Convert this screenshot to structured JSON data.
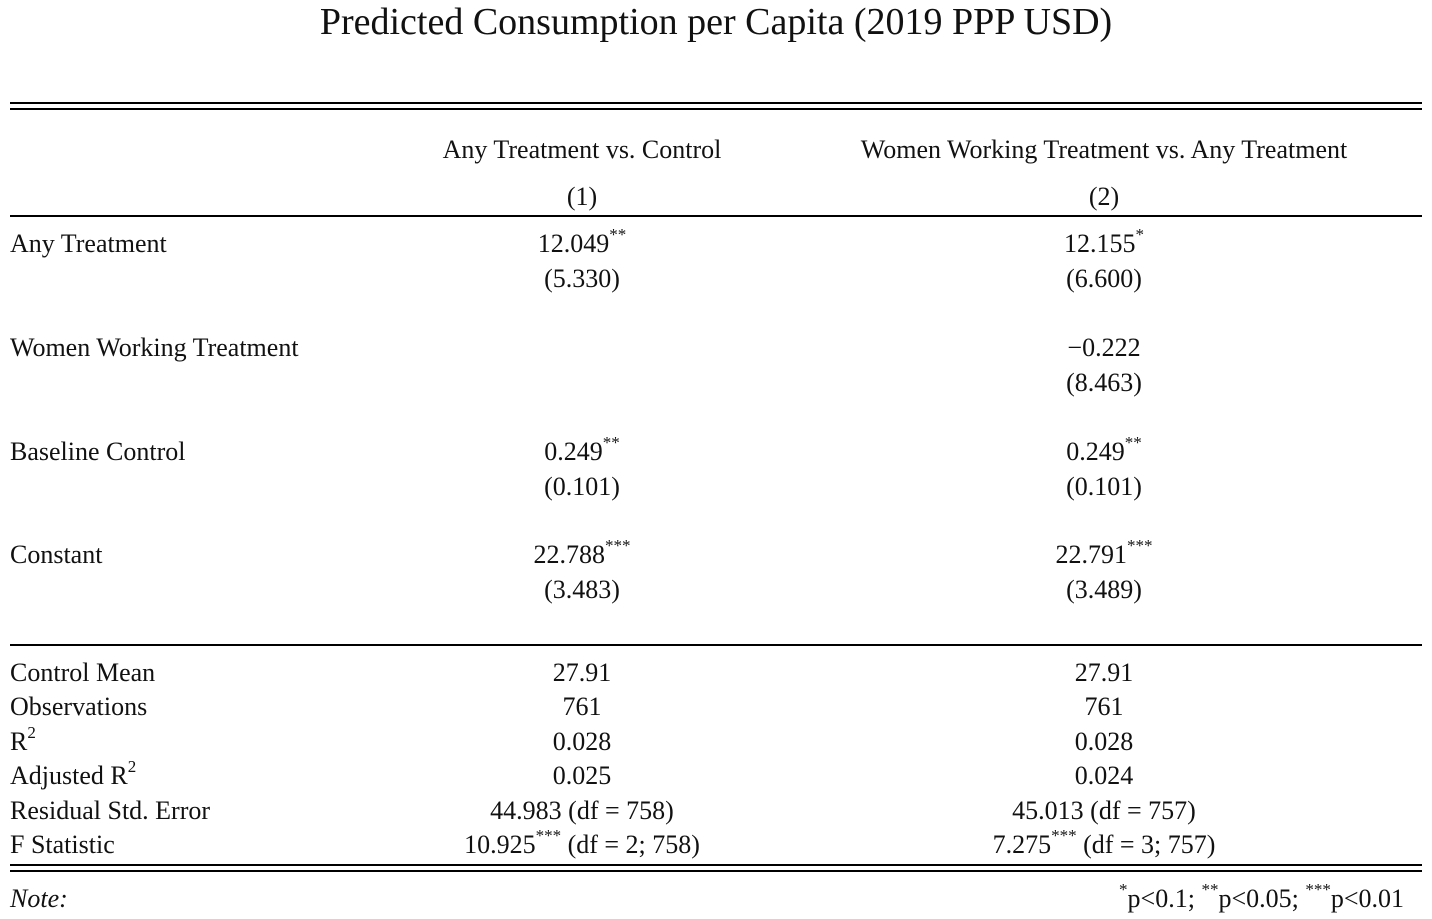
{
  "title": "Predicted Consumption per Capita (2019 PPP USD)",
  "columns": [
    {
      "label": "Any Treatment vs. Control",
      "number": "(1)"
    },
    {
      "label": "Women Working Treatment vs. Any Treatment",
      "number": "(2)"
    }
  ],
  "coefficients": [
    {
      "label": "Any Treatment",
      "c1_est": "12.049",
      "c1_sig": "**",
      "c1_se": "(5.330)",
      "c2_est": "12.155",
      "c2_sig": "*",
      "c2_se": "(6.600)"
    },
    {
      "label": "Women Working Treatment",
      "c1_est": "",
      "c1_sig": "",
      "c1_se": "",
      "c2_est": "−0.222",
      "c2_sig": "",
      "c2_se": "(8.463)"
    },
    {
      "label": "Baseline Control",
      "c1_est": "0.249",
      "c1_sig": "**",
      "c1_se": "(0.101)",
      "c2_est": "0.249",
      "c2_sig": "**",
      "c2_se": "(0.101)"
    },
    {
      "label": "Constant",
      "c1_est": "22.788",
      "c1_sig": "***",
      "c1_se": "(3.483)",
      "c2_est": "22.791",
      "c2_sig": "***",
      "c2_se": "(3.489)"
    }
  ],
  "stats": [
    {
      "label": "Control Mean",
      "c1": "27.91",
      "c2": "27.91"
    },
    {
      "label": "Observations",
      "c1": "761",
      "c2": "761"
    },
    {
      "label": "R",
      "label_sup": "2",
      "c1": "0.028",
      "c2": "0.028"
    },
    {
      "label": "Adjusted R",
      "label_sup": "2",
      "c1": "0.025",
      "c2": "0.024"
    },
    {
      "label": "Residual Std. Error",
      "c1": "44.983 (df = 758)",
      "c2": "45.013 (df = 757)"
    },
    {
      "label": "F Statistic",
      "c1_pre": "10.925",
      "c1_sig": "***",
      "c1_post": " (df = 2; 758)",
      "c2_pre": "7.275",
      "c2_sig": "***",
      "c2_post": " (df = 3; 757)"
    }
  ],
  "note": {
    "label": "Note:",
    "sig1_mark": "*",
    "sig1_text": "p<0.1; ",
    "sig2_mark": "**",
    "sig2_text": "p<0.05; ",
    "sig3_mark": "***",
    "sig3_text": "p<0.01"
  }
}
